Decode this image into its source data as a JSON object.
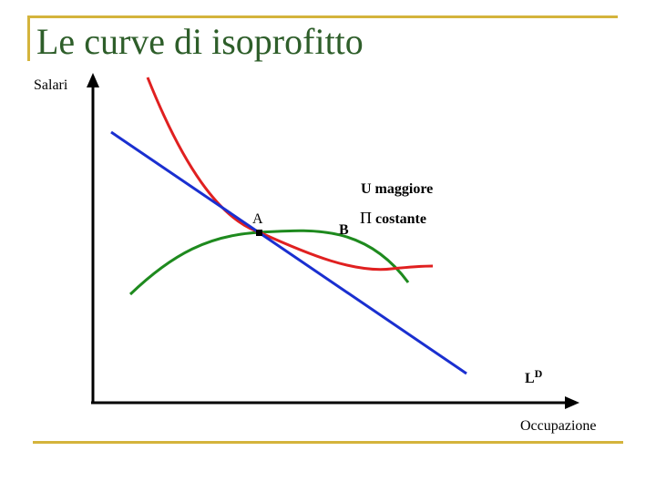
{
  "slide": {
    "title": "Le curve di isoprofitto"
  },
  "axes": {
    "y_label": "Salari",
    "x_label": "Occupazione"
  },
  "labels": {
    "point_a": "A",
    "point_b": "B",
    "utility_label": "U maggiore",
    "profit_symbol": "Π",
    "profit_label": "costante",
    "demand_main": "L",
    "demand_sup": "D"
  },
  "colors": {
    "frame": "#d4b43c",
    "title": "#2e5e2a",
    "axes": "#000000",
    "demand_line": "#1a2fd0",
    "indifference_curve": "#e02020",
    "isoprofit_curve": "#1e8a1e",
    "demand_label": "#1a2fd0"
  },
  "curves": [
    {
      "name": "demand-line",
      "kind": "line",
      "color_key": "demand_line"
    },
    {
      "name": "indifference-curve",
      "kind": "curve",
      "color_key": "indifference_curve"
    },
    {
      "name": "isoprofit-curve",
      "kind": "curve",
      "color_key": "isoprofit_curve"
    }
  ]
}
